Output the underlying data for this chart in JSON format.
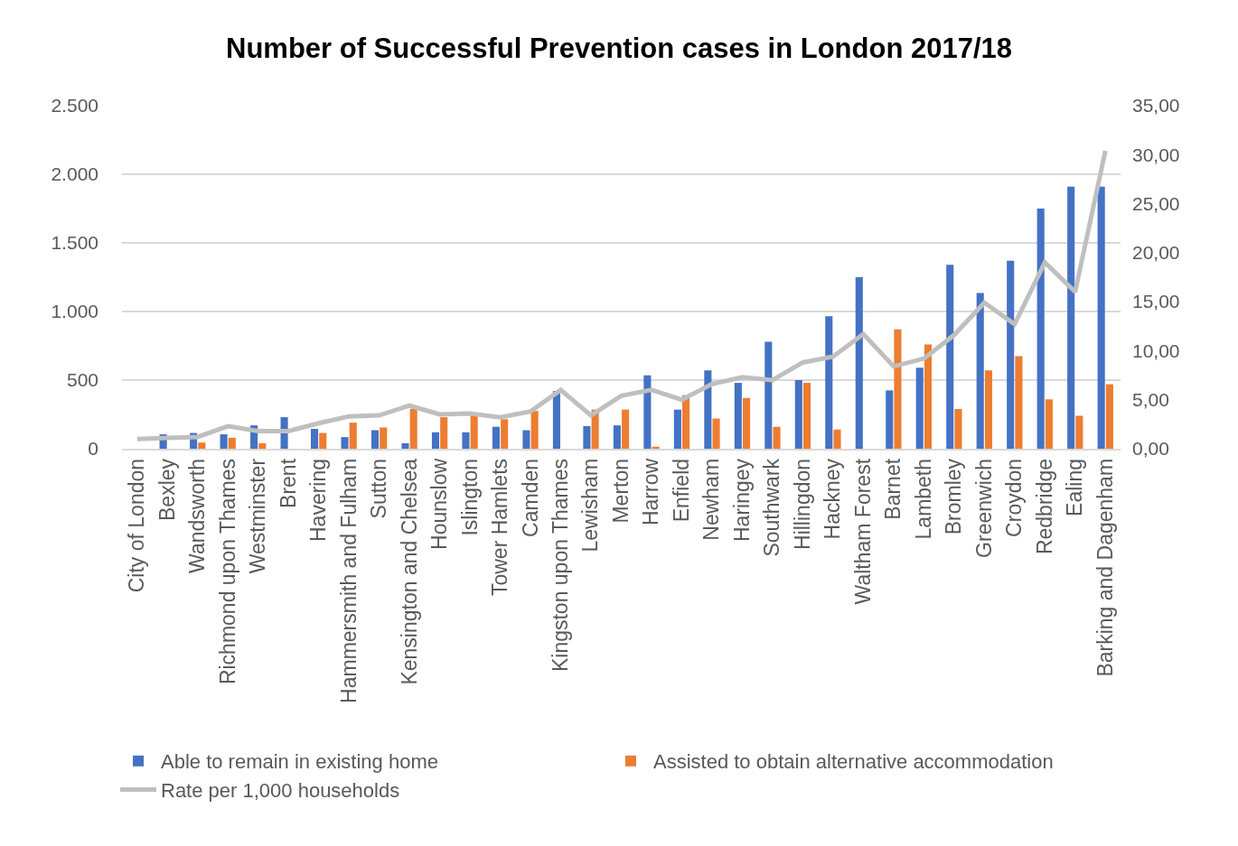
{
  "chart_data": {
    "type": "bar",
    "title": "Number of Successful Prevention cases in London 2017/18",
    "categories": [
      "City of London",
      "Bexley",
      "Wandsworth",
      "Richmond upon Thames",
      "Westminster",
      "Brent",
      "Havering",
      "Hammersmith and Fulham",
      "Sutton",
      "Kensington and Chelsea",
      "Hounslow",
      "Islington",
      "Tower Hamlets",
      "Camden",
      "Kingston upon Thames",
      "Lewisham",
      "Merton",
      "Harrow",
      "Enfield",
      "Newham",
      "Haringey",
      "Southwark",
      "Hillingdon",
      "Hackney",
      "Waltham Forest",
      "Barnet",
      "Lambeth",
      "Bromley",
      "Greenwich",
      "Croydon",
      "Redbridge",
      "Ealing",
      "Barking and Dagenham"
    ],
    "series": [
      {
        "name": "Able to remain in existing home",
        "color": "#4472c4",
        "values": [
          0,
          105,
          115,
          105,
          170,
          230,
          145,
          85,
          135,
          40,
          120,
          120,
          160,
          135,
          420,
          165,
          170,
          535,
          285,
          570,
          480,
          780,
          500,
          965,
          1250,
          425,
          590,
          1340,
          1135,
          1370,
          1750,
          1910,
          1910
        ]
      },
      {
        "name": "Assisted to obtain alternative accommodation",
        "color": "#ed7d31",
        "values": [
          0,
          0,
          45,
          80,
          40,
          0,
          115,
          190,
          155,
          290,
          230,
          245,
          215,
          275,
          0,
          285,
          285,
          15,
          390,
          220,
          370,
          160,
          480,
          140,
          0,
          870,
          760,
          290,
          570,
          675,
          360,
          240,
          470
        ]
      },
      {
        "name": "Rate per 1,000 households",
        "color": "#bfbfbf",
        "type": "line",
        "axis": "y2",
        "values": [
          1.0,
          1.1,
          1.2,
          2.3,
          1.8,
          1.8,
          2.6,
          3.3,
          3.4,
          4.4,
          3.5,
          3.6,
          3.2,
          3.8,
          6.0,
          3.4,
          5.4,
          6.0,
          5.0,
          6.6,
          7.3,
          7.0,
          8.8,
          9.4,
          11.7,
          8.4,
          9.2,
          11.6,
          14.9,
          12.7,
          19.0,
          16.0,
          30.4
        ]
      }
    ],
    "ylim": [
      0,
      2500
    ],
    "yticks": [
      0,
      {
        "value": 500,
        "label": "500"
      },
      {
        "value": 1000,
        "label": "1.000"
      },
      {
        "value": 1500,
        "label": "1.500"
      },
      {
        "value": 2000,
        "label": "2.000"
      },
      {
        "value": 2500,
        "label": "2.500"
      }
    ],
    "y2lim": [
      0,
      35
    ],
    "y2ticks": [
      {
        "value": 0,
        "label": "0,00"
      },
      {
        "value": 5,
        "label": "5,00"
      },
      {
        "value": 10,
        "label": "10,00"
      },
      {
        "value": 15,
        "label": "15,00"
      },
      {
        "value": 20,
        "label": "20,00"
      },
      {
        "value": 25,
        "label": "25,00"
      },
      {
        "value": 30,
        "label": "30,00"
      },
      {
        "value": 35,
        "label": "35,00"
      }
    ],
    "grid": "y",
    "legend": "bottom"
  }
}
